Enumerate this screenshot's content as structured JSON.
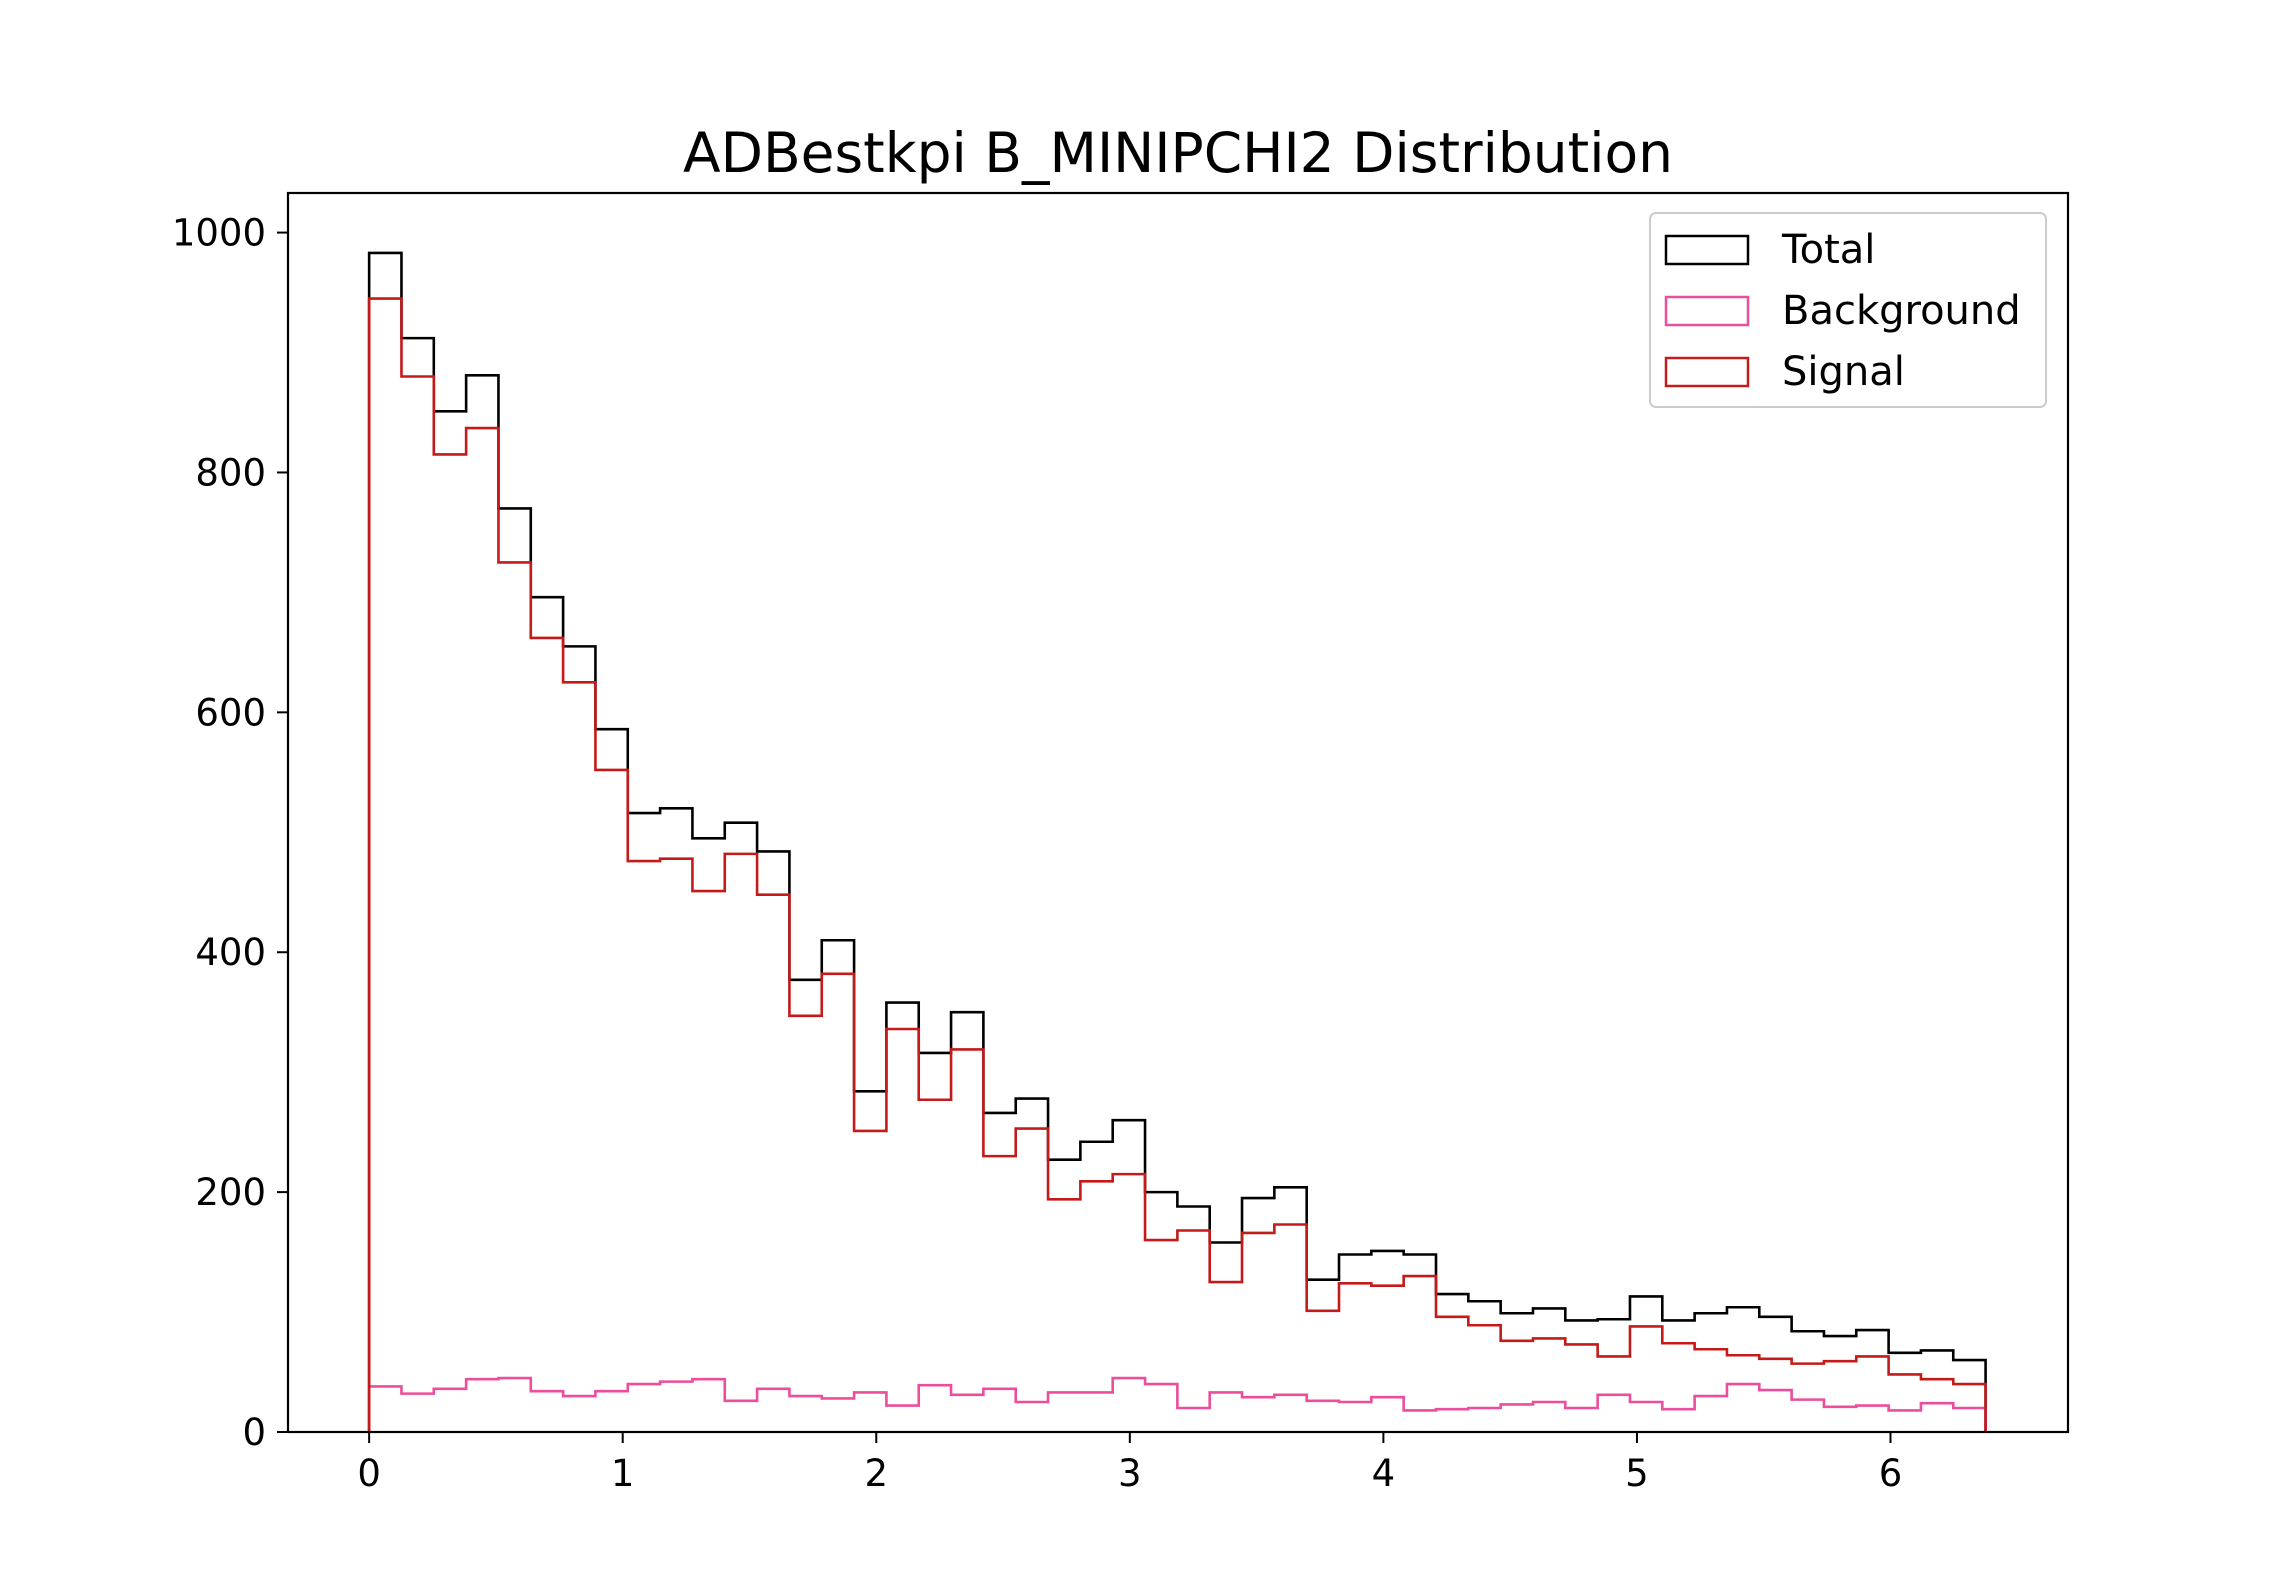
{
  "chart_data": {
    "type": "histogram",
    "title": "ADBestkpi B_MINIPCHI2 Distribution",
    "xlabel": "",
    "ylabel": "",
    "xlim": [
      -0.32,
      6.7
    ],
    "ylim": [
      0,
      1033
    ],
    "xticks": [
      0,
      1,
      2,
      3,
      4,
      5,
      6
    ],
    "yticks": [
      0,
      200,
      400,
      600,
      800,
      1000
    ],
    "grid": false,
    "legend_position": "top-right",
    "bin_start": 0,
    "bin_width": 0.1275,
    "series": [
      {
        "name": "Total",
        "color": "#000000",
        "values": [
          983,
          912,
          851,
          881,
          770,
          696,
          655,
          586,
          516,
          520,
          495,
          508,
          484,
          377,
          410,
          284,
          358,
          316,
          350,
          266,
          278,
          227,
          242,
          260,
          200,
          188,
          158,
          195,
          204,
          127,
          148,
          151,
          148,
          115,
          109,
          99,
          103,
          93,
          94,
          113,
          93,
          99,
          104,
          96,
          84,
          80,
          85,
          66,
          68,
          60
        ]
      },
      {
        "name": "Background",
        "color": "#ec4e9b",
        "values": [
          38,
          32,
          36,
          44,
          45,
          34,
          30,
          34,
          40,
          42,
          44,
          26,
          36,
          30,
          28,
          33,
          22,
          39,
          31,
          36,
          25,
          33,
          33,
          45,
          40,
          20,
          33,
          29,
          31,
          26,
          25,
          29,
          18,
          19,
          20,
          23,
          25,
          20,
          31,
          25,
          19,
          30,
          40,
          35,
          27,
          21,
          22,
          18,
          24,
          20
        ]
      },
      {
        "name": "Signal",
        "color": "#c41a1a",
        "values": [
          945,
          880,
          815,
          837,
          725,
          662,
          625,
          552,
          476,
          478,
          451,
          482,
          448,
          347,
          382,
          251,
          336,
          277,
          319,
          230,
          253,
          194,
          209,
          215,
          160,
          168,
          125,
          166,
          173,
          101,
          124,
          122,
          130,
          96,
          89,
          76,
          78,
          73,
          63,
          88,
          74,
          69,
          64,
          61,
          57,
          59,
          63,
          48,
          44,
          40
        ]
      }
    ]
  }
}
